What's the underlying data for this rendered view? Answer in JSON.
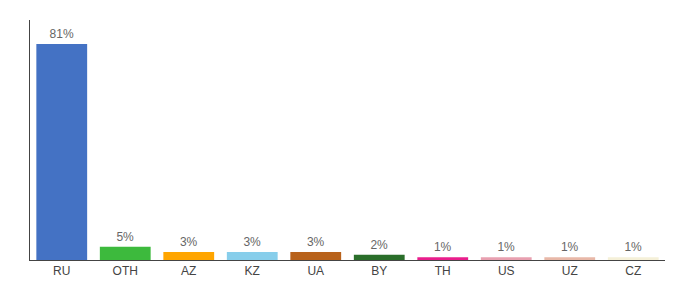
{
  "chart_data": {
    "type": "bar",
    "categories": [
      "RU",
      "OTH",
      "AZ",
      "KZ",
      "UA",
      "BY",
      "TH",
      "US",
      "UZ",
      "CZ"
    ],
    "values": [
      81,
      5,
      3,
      3,
      3,
      2,
      1,
      1,
      1,
      1
    ],
    "value_labels": [
      "81%",
      "5%",
      "3%",
      "3%",
      "3%",
      "2%",
      "1%",
      "1%",
      "1%",
      "1%"
    ],
    "colors": [
      "#4472c4",
      "#3dba3d",
      "#ffa500",
      "#87ceeb",
      "#b8621b",
      "#2a6e2a",
      "#e91e8c",
      "#e8a0b0",
      "#e8b8a8",
      "#f5f0d8"
    ],
    "ylim": [
      0,
      90
    ],
    "grid": false,
    "data_labels": true,
    "tick_labels": "x"
  }
}
